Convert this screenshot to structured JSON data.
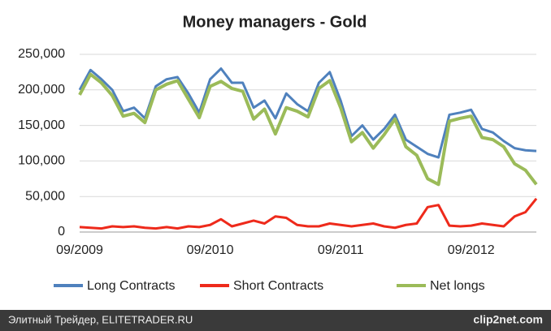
{
  "chart_data": {
    "type": "line",
    "title": "Money managers - Gold",
    "categories": [
      "09/2009",
      null,
      null,
      null,
      null,
      null,
      null,
      null,
      null,
      null,
      null,
      null,
      "09/2010",
      null,
      null,
      null,
      null,
      null,
      null,
      null,
      null,
      null,
      null,
      null,
      "09/2011",
      null,
      null,
      null,
      null,
      null,
      null,
      null,
      null,
      null,
      null,
      null,
      "09/2012",
      null,
      null,
      null,
      null,
      null,
      null
    ],
    "series": [
      {
        "name": "Long Contracts",
        "color": "#4f81bd",
        "values": [
          200000,
          228000,
          215000,
          200000,
          170000,
          175000,
          160000,
          205000,
          215000,
          218000,
          195000,
          168000,
          215000,
          230000,
          210000,
          210000,
          175000,
          185000,
          160000,
          195000,
          180000,
          170000,
          210000,
          225000,
          185000,
          135000,
          150000,
          130000,
          145000,
          165000,
          130000,
          120000,
          110000,
          105000,
          165000,
          168000,
          172000,
          145000,
          140000,
          128000,
          118000,
          115000,
          114000
        ]
      },
      {
        "name": "Short Contracts",
        "color": "#ee2a1b",
        "values": [
          7000,
          6000,
          5000,
          8000,
          7000,
          8000,
          6000,
          5000,
          7000,
          5000,
          8000,
          7000,
          10000,
          18000,
          8000,
          12000,
          16000,
          12000,
          22000,
          20000,
          10000,
          8000,
          8000,
          12000,
          10000,
          8000,
          10000,
          12000,
          8000,
          6000,
          10000,
          12000,
          35000,
          38000,
          9000,
          8000,
          9000,
          12000,
          10000,
          8000,
          22000,
          28000,
          47000
        ]
      },
      {
        "name": "Net longs",
        "color": "#9bbb59",
        "values": [
          193000,
          222000,
          210000,
          192000,
          163000,
          167000,
          154000,
          200000,
          208000,
          213000,
          187000,
          161000,
          205000,
          212000,
          202000,
          198000,
          159000,
          173000,
          138000,
          175000,
          170000,
          162000,
          202000,
          213000,
          175000,
          127000,
          140000,
          118000,
          137000,
          159000,
          120000,
          108000,
          75000,
          67000,
          156000,
          160000,
          163000,
          133000,
          130000,
          120000,
          96000,
          87000,
          67000
        ]
      }
    ],
    "ylim": [
      0,
      250000
    ],
    "yticks": [
      0,
      {
        "value": 50000,
        "label": "50,000"
      },
      {
        "value": 100000,
        "label": "100,000"
      },
      {
        "value": 150000,
        "label": "150,000"
      },
      {
        "value": 200000,
        "label": "200,000"
      },
      {
        "value": 250000,
        "label": "250,000"
      }
    ],
    "grid": true,
    "legend": "bottom"
  },
  "footer": {
    "left": "Элитный Трейдер, ELITETRADER.RU",
    "right": "clip2net.com"
  }
}
